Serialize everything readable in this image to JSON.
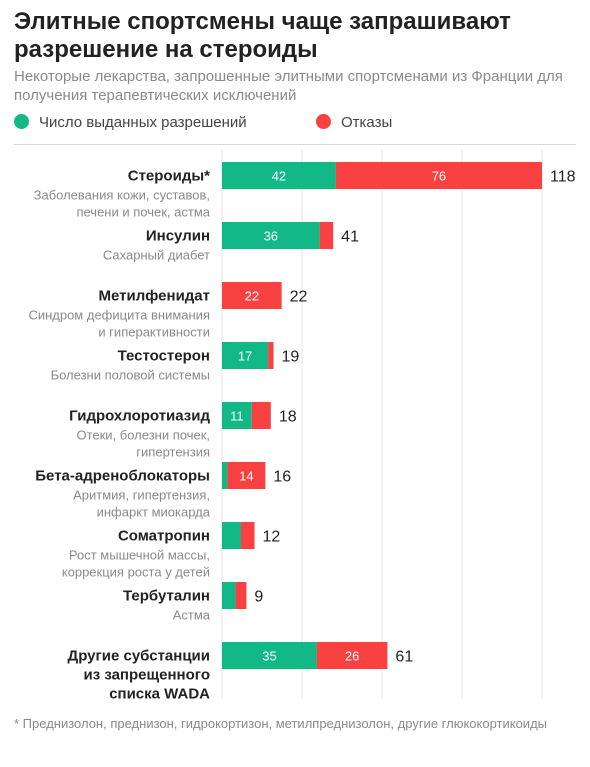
{
  "header": {
    "title": "Элитные спортсмены чаще запрашивают разрешение на стероиды",
    "subtitle": "Некоторые лекарства, запрошенные элитными спортсменами из Франции для получения терапевтических исключений"
  },
  "footnote": "* Преднизолон, преднизон, гидрокортизон, метилпреднизолон, другие глюкокортикоиды",
  "colors": {
    "granted": "#12b886",
    "refused": "#fa4141",
    "grid": "#e6e6e6"
  },
  "chart_data": {
    "type": "bar",
    "orientation": "horizontal",
    "stacked": true,
    "legend_position": "top-left",
    "grid": true,
    "xlim": [
      0,
      118
    ],
    "categories": [
      {
        "name": "Стероиды*",
        "sub": [
          "Заболевания кожи, суставов,",
          "печени и почек, астма"
        ]
      },
      {
        "name": "Инсулин",
        "sub": [
          "Сахарный диабет"
        ]
      },
      {
        "name": "Метилфенидат",
        "sub": [
          "Синдром дефицита внимания",
          "и гиперактивности"
        ]
      },
      {
        "name": "Тестостерон",
        "sub": [
          "Болезни половой системы"
        ]
      },
      {
        "name": "Гидрохлоротиазид",
        "sub": [
          "Отеки, болезни почек,",
          "гипертензия"
        ]
      },
      {
        "name": "Бета-адреноблокаторы",
        "sub": [
          "Аритмия, гипертензия,",
          "инфаркт миокарда"
        ]
      },
      {
        "name": "Соматропин",
        "sub": [
          "Рост мышечной массы,",
          "коррекция роста у детей"
        ]
      },
      {
        "name": "Тербуталин",
        "sub": [
          "Астма"
        ]
      },
      {
        "name": [
          "Другие субстанции",
          "из запрещенного",
          "списка WADA"
        ],
        "sub": []
      }
    ],
    "series": [
      {
        "name": "Число выданных разрешений",
        "values": [
          42,
          36,
          0,
          17,
          11,
          2,
          7,
          5,
          35
        ]
      },
      {
        "name": "Отказы",
        "values": [
          76,
          5,
          22,
          2,
          7,
          14,
          5,
          4,
          26
        ]
      }
    ],
    "segment_labels": [
      [
        "42",
        "36",
        "",
        "17",
        "11",
        "",
        "",
        "",
        "35"
      ],
      [
        "76",
        "",
        "22",
        "",
        "",
        "14",
        "",
        "",
        "26"
      ]
    ],
    "totals": [
      "118",
      "41",
      "22",
      "19",
      "18",
      "16",
      "12",
      "9",
      "61"
    ]
  }
}
